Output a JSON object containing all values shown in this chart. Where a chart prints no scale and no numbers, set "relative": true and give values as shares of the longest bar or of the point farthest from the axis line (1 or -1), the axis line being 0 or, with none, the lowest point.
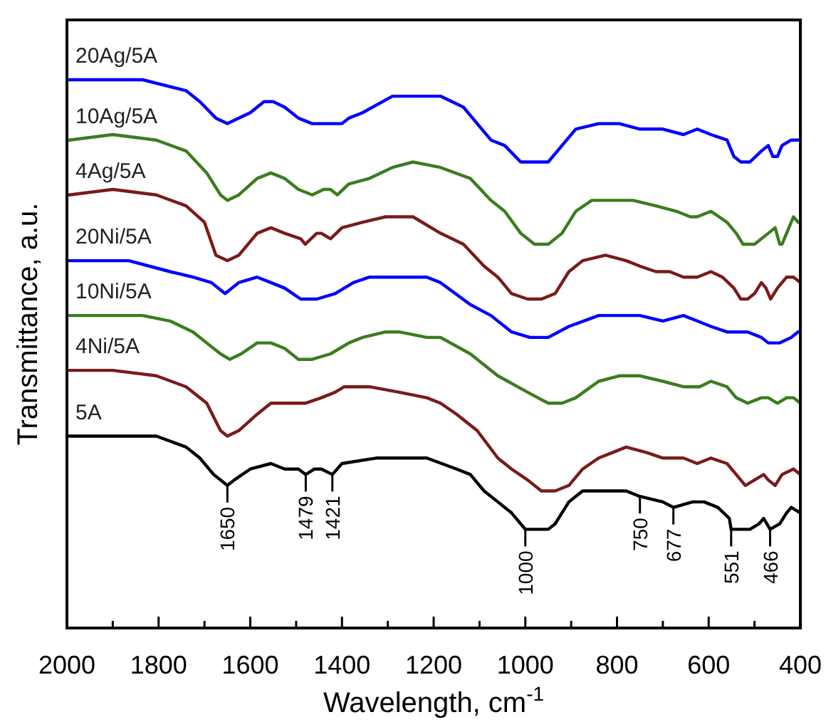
{
  "chart_data": {
    "type": "line",
    "relative": true,
    "xlabel": "Wavelength, cm$^{-1}$",
    "ylabel": "Transmittance, a.u.",
    "xlim": [
      2000,
      400
    ],
    "xticks": [
      2000,
      {
        "value": 1900,
        "label": null
      },
      1800,
      {
        "value": 1700,
        "label": null
      },
      1600,
      {
        "value": 1500,
        "label": null
      },
      1400,
      {
        "value": 1300,
        "label": null
      },
      1200,
      {
        "value": 1100,
        "label": null
      },
      1000,
      {
        "value": 900,
        "label": null
      },
      800,
      {
        "value": 700,
        "label": null
      },
      600,
      {
        "value": 500,
        "label": null
      },
      400
    ],
    "grid": false,
    "marker": "none",
    "line_style": "solid",
    "series": [
      {
        "name": "20Ag/5A",
        "color": "#0000ff",
        "x": [
          1995,
          1835,
          1740,
          1710,
          1675,
          1650,
          1600,
          1570,
          1550,
          1525,
          1495,
          1465,
          1430,
          1415,
          1400,
          1385,
          1355,
          1290,
          1215,
          1185,
          1135,
          1105,
          1075,
          1045,
          1010,
          980,
          950,
          920,
          890,
          840,
          795,
          750,
          700,
          655,
          625,
          595,
          560,
          545,
          530,
          510,
          485,
          470,
          460,
          450,
          440,
          420,
          415,
          405
        ],
        "values": [
          1.0,
          1.0,
          0.98,
          0.96,
          0.93,
          0.92,
          0.94,
          0.96,
          0.96,
          0.95,
          0.93,
          0.92,
          0.92,
          0.92,
          0.92,
          0.93,
          0.94,
          0.97,
          0.97,
          0.97,
          0.95,
          0.92,
          0.89,
          0.88,
          0.85,
          0.85,
          0.85,
          0.88,
          0.91,
          0.92,
          0.92,
          0.91,
          0.91,
          0.9,
          0.91,
          0.9,
          0.89,
          0.86,
          0.85,
          0.85,
          0.87,
          0.88,
          0.86,
          0.86,
          0.88,
          0.89,
          0.89,
          0.89
        ]
      },
      {
        "name": "10Ag/5A",
        "color": "#3a7d1e",
        "x": [
          1995,
          1900,
          1805,
          1740,
          1695,
          1665,
          1650,
          1625,
          1585,
          1555,
          1525,
          1495,
          1465,
          1440,
          1425,
          1410,
          1385,
          1340,
          1290,
          1245,
          1185,
          1120,
          1075,
          1045,
          1010,
          980,
          950,
          920,
          890,
          855,
          810,
          765,
          715,
          670,
          640,
          625,
          595,
          560,
          540,
          525,
          500,
          470,
          455,
          445,
          440,
          430,
          415,
          405
        ],
        "values": [
          0.89,
          0.9,
          0.89,
          0.87,
          0.83,
          0.79,
          0.78,
          0.79,
          0.82,
          0.83,
          0.82,
          0.8,
          0.79,
          0.8,
          0.8,
          0.79,
          0.81,
          0.82,
          0.84,
          0.85,
          0.84,
          0.82,
          0.78,
          0.76,
          0.72,
          0.7,
          0.7,
          0.72,
          0.76,
          0.78,
          0.78,
          0.78,
          0.77,
          0.76,
          0.75,
          0.75,
          0.76,
          0.74,
          0.72,
          0.7,
          0.7,
          0.72,
          0.73,
          0.7,
          0.7,
          0.72,
          0.75,
          0.74
        ]
      },
      {
        "name": "4Ag/5A",
        "color": "#7a1a1a",
        "x": [
          1995,
          1900,
          1805,
          1740,
          1700,
          1675,
          1650,
          1625,
          1585,
          1555,
          1525,
          1490,
          1480,
          1455,
          1445,
          1425,
          1400,
          1355,
          1305,
          1245,
          1185,
          1135,
          1090,
          1060,
          1030,
          995,
          965,
          935,
          905,
          875,
          825,
          780,
          750,
          715,
          685,
          655,
          625,
          595,
          570,
          545,
          530,
          515,
          500,
          485,
          475,
          465,
          450,
          430,
          415,
          400
        ],
        "values": [
          0.79,
          0.8,
          0.79,
          0.77,
          0.74,
          0.68,
          0.67,
          0.68,
          0.72,
          0.73,
          0.72,
          0.71,
          0.7,
          0.72,
          0.72,
          0.71,
          0.73,
          0.74,
          0.75,
          0.75,
          0.72,
          0.7,
          0.66,
          0.64,
          0.61,
          0.6,
          0.6,
          0.61,
          0.65,
          0.67,
          0.68,
          0.67,
          0.66,
          0.65,
          0.65,
          0.64,
          0.64,
          0.65,
          0.64,
          0.62,
          0.6,
          0.6,
          0.61,
          0.63,
          0.62,
          0.6,
          0.62,
          0.64,
          0.64,
          0.63
        ]
      },
      {
        "name": "20Ni/5A",
        "color": "#0000ff",
        "x": [
          1995,
          1865,
          1775,
          1725,
          1685,
          1655,
          1625,
          1585,
          1555,
          1525,
          1490,
          1455,
          1415,
          1375,
          1340,
          1290,
          1215,
          1185,
          1120,
          1075,
          1030,
          990,
          950,
          905,
          840,
          795,
          750,
          700,
          655,
          625,
          595,
          560,
          515,
          485,
          470,
          445,
          420,
          405
        ],
        "values": [
          0.67,
          0.67,
          0.65,
          0.64,
          0.63,
          0.61,
          0.63,
          0.64,
          0.63,
          0.62,
          0.6,
          0.6,
          0.61,
          0.63,
          0.64,
          0.64,
          0.64,
          0.63,
          0.59,
          0.57,
          0.54,
          0.53,
          0.53,
          0.55,
          0.57,
          0.57,
          0.57,
          0.56,
          0.57,
          0.56,
          0.55,
          0.54,
          0.54,
          0.53,
          0.52,
          0.52,
          0.53,
          0.54
        ]
      },
      {
        "name": "10Ni/5A",
        "color": "#3a7d1e",
        "x": [
          1995,
          1835,
          1775,
          1725,
          1695,
          1665,
          1645,
          1620,
          1585,
          1555,
          1525,
          1495,
          1465,
          1425,
          1385,
          1355,
          1305,
          1275,
          1215,
          1185,
          1120,
          1060,
          995,
          950,
          920,
          890,
          840,
          795,
          750,
          700,
          655,
          620,
          595,
          560,
          540,
          515,
          485,
          470,
          450,
          430,
          415,
          400
        ],
        "values": [
          0.57,
          0.57,
          0.56,
          0.54,
          0.52,
          0.5,
          0.49,
          0.5,
          0.52,
          0.52,
          0.51,
          0.49,
          0.49,
          0.5,
          0.52,
          0.53,
          0.54,
          0.54,
          0.53,
          0.53,
          0.5,
          0.46,
          0.43,
          0.41,
          0.41,
          0.42,
          0.45,
          0.46,
          0.46,
          0.45,
          0.44,
          0.44,
          0.45,
          0.44,
          0.42,
          0.41,
          0.42,
          0.42,
          0.41,
          0.42,
          0.42,
          0.41
        ]
      },
      {
        "name": "4Ni/5A",
        "color": "#7a1a1a",
        "x": [
          1995,
          1900,
          1805,
          1740,
          1695,
          1665,
          1650,
          1625,
          1585,
          1555,
          1525,
          1480,
          1445,
          1415,
          1395,
          1340,
          1275,
          1215,
          1185,
          1150,
          1105,
          1060,
          1030,
          995,
          965,
          935,
          905,
          875,
          840,
          810,
          780,
          735,
          700,
          655,
          625,
          595,
          560,
          540,
          520,
          500,
          480,
          470,
          455,
          440,
          415,
          400
        ],
        "values": [
          0.47,
          0.47,
          0.46,
          0.44,
          0.41,
          0.36,
          0.35,
          0.36,
          0.39,
          0.41,
          0.41,
          0.41,
          0.42,
          0.43,
          0.44,
          0.44,
          0.43,
          0.42,
          0.41,
          0.39,
          0.36,
          0.31,
          0.29,
          0.27,
          0.25,
          0.25,
          0.26,
          0.29,
          0.31,
          0.32,
          0.33,
          0.32,
          0.31,
          0.31,
          0.3,
          0.31,
          0.3,
          0.28,
          0.26,
          0.27,
          0.28,
          0.27,
          0.26,
          0.28,
          0.29,
          0.28
        ]
      },
      {
        "name": "5A",
        "color": "#000000",
        "x": [
          1995,
          1900,
          1805,
          1740,
          1710,
          1680,
          1650,
          1635,
          1600,
          1555,
          1525,
          1495,
          1479,
          1460,
          1445,
          1421,
          1400,
          1325,
          1245,
          1215,
          1150,
          1120,
          1090,
          1060,
          1030,
          1000,
          950,
          935,
          905,
          875,
          825,
          780,
          750,
          700,
          677,
          635,
          610,
          580,
          555,
          551,
          510,
          490,
          480,
          466,
          445,
          430,
          420,
          400
        ],
        "values": [
          0.35,
          0.35,
          0.35,
          0.33,
          0.31,
          0.28,
          0.26,
          0.27,
          0.29,
          0.3,
          0.29,
          0.29,
          0.28,
          0.29,
          0.29,
          0.28,
          0.3,
          0.31,
          0.31,
          0.31,
          0.29,
          0.28,
          0.25,
          0.23,
          0.21,
          0.18,
          0.18,
          0.19,
          0.23,
          0.25,
          0.25,
          0.25,
          0.24,
          0.23,
          0.22,
          0.23,
          0.23,
          0.22,
          0.2,
          0.18,
          0.18,
          0.19,
          0.2,
          0.18,
          0.19,
          0.21,
          0.22,
          0.21
        ]
      }
    ],
    "annotations": [
      {
        "text": "1650",
        "x": 1650,
        "y": 0.26
      },
      {
        "text": "1479",
        "x": 1479,
        "y": 0.28
      },
      {
        "text": "1421",
        "x": 1421,
        "y": 0.28
      },
      {
        "text": "1000",
        "x": 1000,
        "y": 0.18
      },
      {
        "text": "750",
        "x": 750,
        "y": 0.24
      },
      {
        "text": "677",
        "x": 677,
        "y": 0.22
      },
      {
        "text": "551",
        "x": 551,
        "y": 0.18
      },
      {
        "text": "466",
        "x": 466,
        "y": 0.18
      }
    ]
  }
}
